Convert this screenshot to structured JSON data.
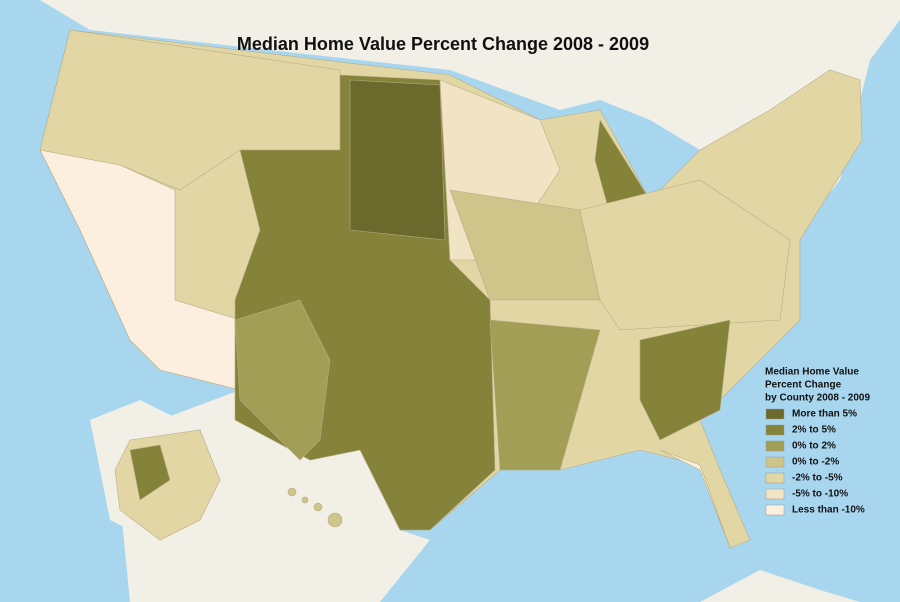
{
  "title": "Median Home Value Percent Change 2008 - 2009",
  "legend": {
    "title_lines": [
      "Median Home Value",
      "Percent Change",
      "by County 2008 - 2009"
    ],
    "items": [
      {
        "label": "More than 5%",
        "color": "#6b6a2c"
      },
      {
        "label": "2% to 5%",
        "color": "#85823a"
      },
      {
        "label": "0% to 2%",
        "color": "#a39e55"
      },
      {
        "label": "0% to -2%",
        "color": "#cfc48a"
      },
      {
        "label": "-2% to -5%",
        "color": "#e3d6a5"
      },
      {
        "label": "-5% to -10%",
        "color": "#f0e4c4"
      },
      {
        "label": "Less than -10%",
        "color": "#fcefdf"
      }
    ]
  }
}
